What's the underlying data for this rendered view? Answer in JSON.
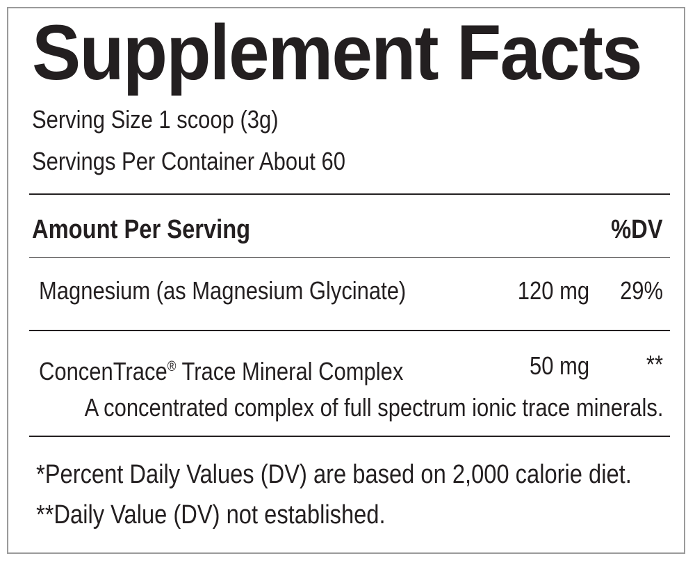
{
  "label": {
    "title": "Supplement Facts",
    "serving_size": "Serving Size 1 scoop (3g)",
    "servings_per_container": "Servings Per Container About 60",
    "header_amount": "Amount Per Serving",
    "header_dv": "%DV",
    "nutrients": [
      {
        "name": "Magnesium (as Magnesium Glycinate)",
        "amount": "120 mg",
        "dv": "29%"
      },
      {
        "name": "ConcenTrace",
        "registered_mark": "®",
        "name_suffix": " Trace Mineral Complex",
        "amount": "50 mg",
        "dv": "**",
        "description": "A concentrated complex of full spectrum ionic trace minerals."
      }
    ],
    "footnotes": [
      "*Percent Daily Values (DV) are based on 2,000 calorie diet.",
      "**Daily Value (DV) not established."
    ]
  },
  "colors": {
    "text": "#231f20",
    "border": "#9a9a9a",
    "background": "#ffffff"
  }
}
